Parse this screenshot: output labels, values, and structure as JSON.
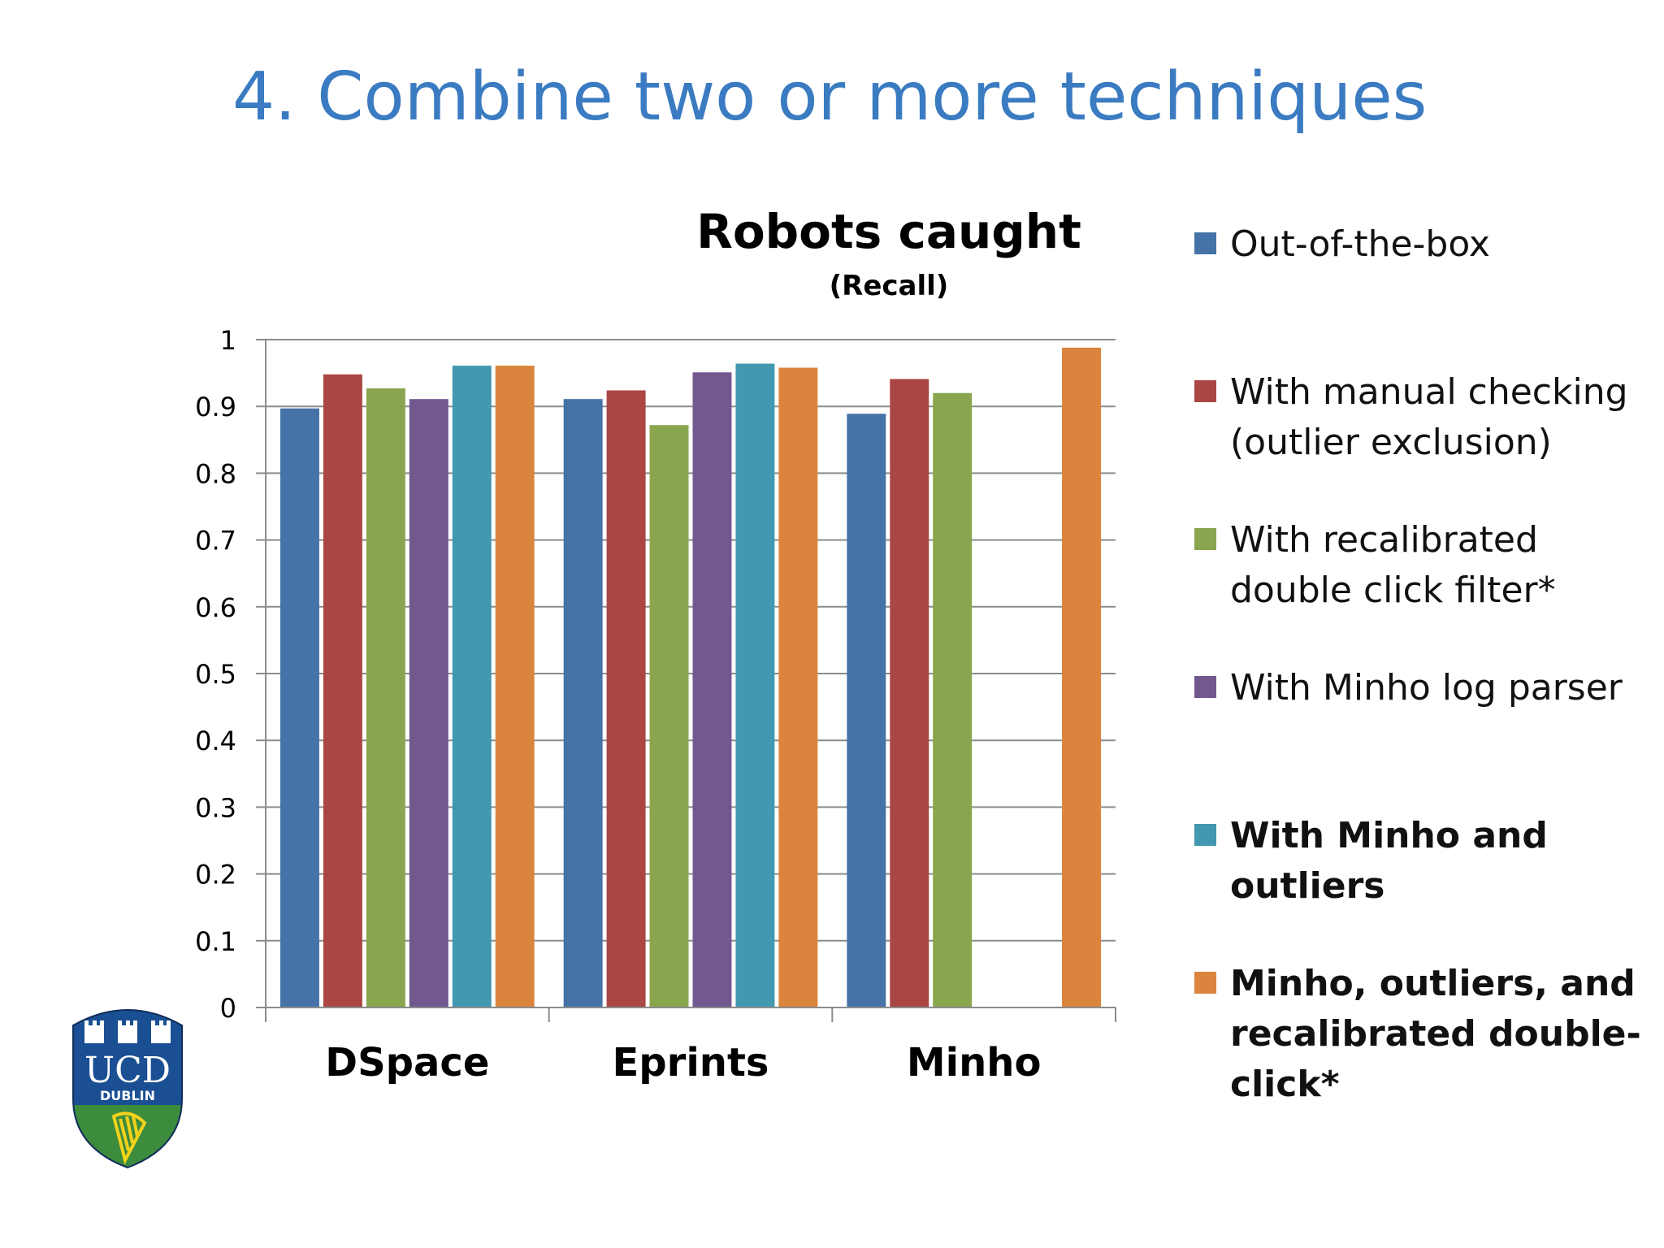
{
  "slide": {
    "title": "4. Combine two or more techniques"
  },
  "chart_data": {
    "type": "bar",
    "title": "Robots caught",
    "subtitle": "(Recall)",
    "categories": [
      "DSpace",
      "Eprints",
      "Minho"
    ],
    "ylim": [
      0,
      1
    ],
    "yticks": [
      "0",
      "0.1",
      "0.2",
      "0.3",
      "0.4",
      "0.5",
      "0.6",
      "0.7",
      "0.8",
      "0.9",
      "1"
    ],
    "grid": true,
    "legend_position": "right",
    "series": [
      {
        "name": "Out-of-the-box",
        "color": "#4572a7",
        "bold": false,
        "values": [
          0.897,
          0.911,
          0.889
        ]
      },
      {
        "name": "With manual checking (outlier exclusion)",
        "color": "#aa4643",
        "bold": false,
        "values": [
          0.948,
          0.924,
          0.941
        ]
      },
      {
        "name": "With recalibrated double click filter*",
        "color": "#89a54e",
        "bold": false,
        "values": [
          0.927,
          0.872,
          0.92
        ]
      },
      {
        "name": "With Minho log parser",
        "color": "#71588f",
        "bold": false,
        "values": [
          0.911,
          0.951,
          null
        ]
      },
      {
        "name": "With Minho and outliers",
        "color": "#4198af",
        "bold": true,
        "values": [
          0.961,
          0.964,
          null
        ]
      },
      {
        "name": "Minho, outliers, and recalibrated double-click*",
        "color": "#db843d",
        "bold": true,
        "values": [
          0.961,
          0.958,
          0.988
        ]
      }
    ]
  },
  "logo": {
    "text_main": "UCD",
    "text_sub": "DUBLIN",
    "colors": {
      "blue": "#1b4f93",
      "green": "#3d8b3d",
      "yellow": "#f2d21b"
    }
  }
}
